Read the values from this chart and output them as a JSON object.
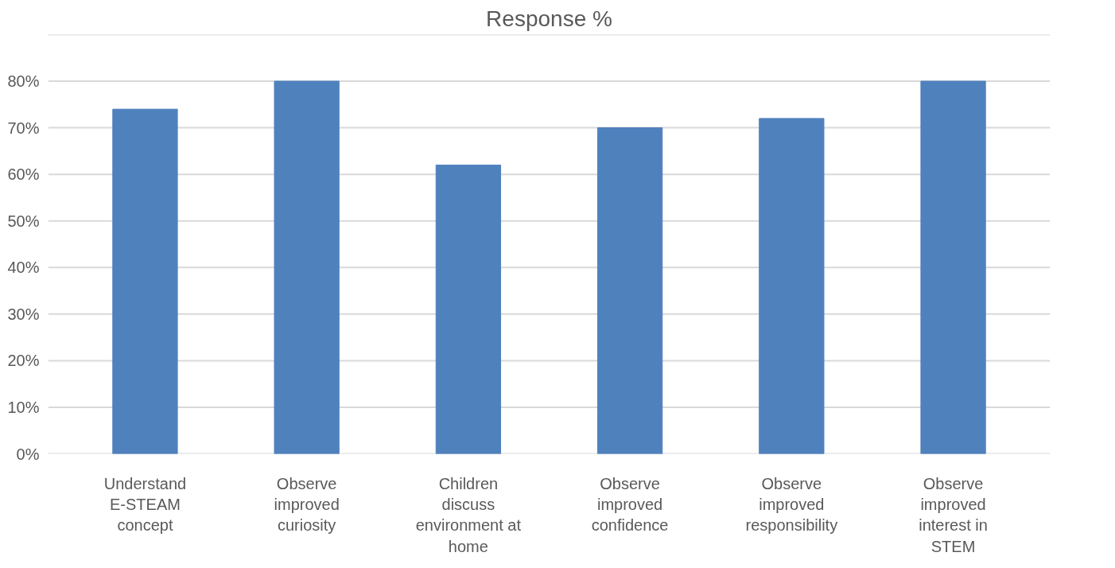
{
  "chart_data": {
    "type": "bar",
    "title": "Response %",
    "categories": [
      "Understand E-STEAM concept",
      "Observe improved curiosity",
      "Children discuss environment at home",
      "Observe improved confidence",
      "Observe improved responsibility",
      "Observe improved interest in STEM"
    ],
    "values": [
      74,
      80,
      62,
      70,
      72,
      80
    ],
    "color": "#4f81bd",
    "ylim": [
      0,
      90
    ],
    "yticks": [
      {
        "value": 0,
        "label": "0%"
      },
      {
        "value": 10,
        "label": "10%"
      },
      {
        "value": 20,
        "label": "20%"
      },
      {
        "value": 30,
        "label": "30%"
      },
      {
        "value": 40,
        "label": "40%"
      },
      {
        "value": 50,
        "label": "50%"
      },
      {
        "value": 60,
        "label": "60%"
      },
      {
        "value": 70,
        "label": "70%"
      },
      {
        "value": 80,
        "label": "80%"
      },
      {
        "value": 90,
        "label": null
      }
    ],
    "grid": "y"
  }
}
